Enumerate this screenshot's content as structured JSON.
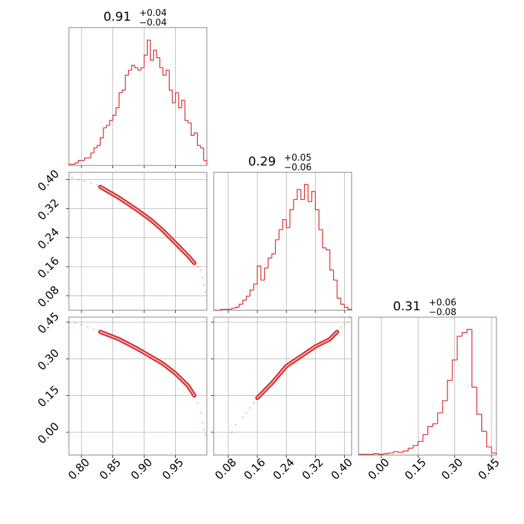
{
  "chart_data": {
    "type": "corner",
    "color": "#d62728",
    "grid": true,
    "params": [
      {
        "title": {
          "value": "0.91",
          "plus": "+0.04",
          "minus": "−0.04"
        },
        "lim": [
          0.78,
          1.0
        ],
        "ticks": [
          {
            "value": 0.8,
            "label": "0.80"
          },
          0.85,
          {
            "value": 0.9,
            "label": "0.90"
          },
          0.95
        ]
      },
      {
        "title": {
          "value": "0.29",
          "plus": "+0.05",
          "minus": "−0.06"
        },
        "lim": [
          0.04,
          0.42
        ],
        "ticks": [
          0.08,
          0.16,
          0.24,
          0.32,
          {
            "value": 0.4,
            "label": "0.40"
          }
        ]
      },
      {
        "title": {
          "value": "0.31",
          "plus": "+0.06",
          "minus": "−0.08"
        },
        "lim": [
          -0.093,
          0.47
        ],
        "ticks": [
          {
            "value": 0,
            "label": "0.00"
          },
          0.15,
          {
            "value": 0.3,
            "label": "0.30"
          },
          0.45
        ]
      }
    ],
    "histograms": [
      {
        "bins": [
          0.78,
          0.785,
          0.79,
          0.795,
          0.8,
          0.805,
          0.81,
          0.815,
          0.82,
          0.825,
          0.83,
          0.835,
          0.84,
          0.845,
          0.85,
          0.855,
          0.86,
          0.865,
          0.87,
          0.875,
          0.88,
          0.885,
          0.89,
          0.895,
          0.9,
          0.905,
          0.91,
          0.915,
          0.92,
          0.925,
          0.93,
          0.935,
          0.94,
          0.945,
          0.95,
          0.955,
          0.96,
          0.965,
          0.97,
          0.975,
          0.98,
          0.985,
          0.99,
          0.995,
          1.0
        ],
        "counts": [
          1,
          1,
          2,
          4,
          4,
          6,
          6,
          10,
          14,
          16,
          22,
          30,
          32,
          36,
          40,
          46,
          58,
          60,
          72,
          76,
          80,
          78,
          76,
          78,
          88,
          100,
          84,
          92,
          86,
          78,
          72,
          76,
          60,
          50,
          58,
          46,
          52,
          36,
          34,
          24,
          26,
          16,
          14,
          4
        ],
        "ylim": [
          0,
          110
        ]
      },
      {
        "bins": [
          0.04,
          0.05,
          0.06,
          0.07,
          0.08,
          0.09,
          0.1,
          0.11,
          0.12,
          0.13,
          0.14,
          0.15,
          0.16,
          0.17,
          0.18,
          0.19,
          0.2,
          0.21,
          0.22,
          0.23,
          0.24,
          0.25,
          0.26,
          0.27,
          0.28,
          0.29,
          0.3,
          0.31,
          0.32,
          0.33,
          0.34,
          0.35,
          0.36,
          0.37,
          0.38,
          0.39,
          0.4,
          0.41,
          0.42
        ],
        "counts": [
          0,
          0,
          1,
          1,
          1,
          2,
          3,
          6,
          10,
          14,
          20,
          26,
          44,
          30,
          42,
          52,
          56,
          70,
          80,
          90,
          82,
          100,
          110,
          120,
          110,
          125,
          108,
          118,
          100,
          80,
          62,
          60,
          40,
          30,
          12,
          6,
          3,
          1
        ],
        "ylim": [
          0,
          137
        ]
      },
      {
        "bins": [
          -0.09,
          -0.07,
          -0.05,
          -0.03,
          -0.01,
          0.01,
          0.03,
          0.05,
          0.07,
          0.09,
          0.11,
          0.13,
          0.15,
          0.17,
          0.19,
          0.21,
          0.23,
          0.25,
          0.27,
          0.29,
          0.31,
          0.33,
          0.35,
          0.37,
          0.39,
          0.41,
          0.43,
          0.45,
          0.47
        ],
        "counts": [
          1,
          1,
          1,
          2,
          1,
          2,
          3,
          5,
          4,
          6,
          10,
          14,
          20,
          30,
          42,
          46,
          62,
          80,
          110,
          140,
          175,
          180,
          185,
          100,
          60,
          35,
          12,
          3
        ],
        "ylim": [
          0,
          203
        ]
      }
    ],
    "pairs": [
      {
        "x": [
          0.83,
          0.86,
          0.89,
          0.91,
          0.93,
          0.95,
          0.97,
          0.98
        ],
        "y": [
          0.38,
          0.35,
          0.315,
          0.29,
          0.26,
          0.225,
          0.19,
          0.17
        ],
        "scatter_x": [
          0.785,
          0.795,
          0.805,
          0.815,
          0.825,
          0.985,
          0.99,
          0.993,
          0.995,
          0.997
        ],
        "scatter_y": [
          0.405,
          0.4,
          0.395,
          0.39,
          0.385,
          0.16,
          0.15,
          0.13,
          0.11,
          0.09
        ]
      },
      {
        "x": [
          0.83,
          0.86,
          0.89,
          0.91,
          0.93,
          0.95,
          0.97,
          0.98
        ],
        "y": [
          0.41,
          0.38,
          0.34,
          0.31,
          0.28,
          0.24,
          0.19,
          0.15
        ],
        "scatter_x": [
          0.78,
          0.79,
          0.8,
          0.81,
          0.82,
          0.985,
          0.99,
          0.993,
          0.995,
          0.998
        ],
        "scatter_y": [
          0.45,
          0.445,
          0.44,
          0.43,
          0.42,
          0.12,
          0.08,
          0.04,
          0.01,
          -0.01
        ]
      },
      {
        "x": [
          0.16,
          0.2,
          0.24,
          0.28,
          0.32,
          0.36,
          0.38
        ],
        "y": [
          0.14,
          0.2,
          0.27,
          0.31,
          0.35,
          0.38,
          0.41
        ],
        "scatter_x": [
          0.09,
          0.1,
          0.12,
          0.13,
          0.14,
          0.15,
          0.39,
          0.4,
          0.41,
          0.415
        ],
        "scatter_y": [
          0.0,
          0.03,
          0.06,
          0.08,
          0.1,
          0.12,
          0.43,
          0.44,
          0.45,
          0.47
        ]
      }
    ]
  }
}
